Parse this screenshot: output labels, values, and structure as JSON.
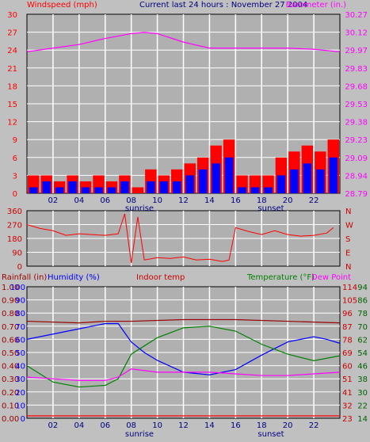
{
  "header": {
    "title": "Current last 24 hours : November 27 2004",
    "wind_label": "Windspeed (mph)",
    "baro_label": "Barometer (in.)"
  },
  "colors": {
    "background": "#c0c0c0",
    "plot_bg": "#b0b0b0",
    "grid": "#ffffff",
    "red": "#ff0000",
    "blue": "#0000ff",
    "magenta": "#ff00ff",
    "darkred": "#990000",
    "green": "#008000",
    "navy": "#000080",
    "darkgreen": "#006400"
  },
  "x_ticks": [
    "02",
    "04",
    "06",
    "08",
    "10",
    "12",
    "14",
    "16",
    "18",
    "20",
    "22"
  ],
  "sunrise_label": "sunrise",
  "sunset_label": "sunset",
  "panel3": {
    "rain_label": "Rainfall (in)",
    "humidity_label": "Humidity (%)",
    "indoor_label": "Indoor temp",
    "temp_label": "Temperature (°F)",
    "dew_label": "Dew Point"
  },
  "chart_data": [
    {
      "type": "bar",
      "title": "Windspeed (mph) / Barometer (in.)",
      "x_range_hours": [
        0,
        24
      ],
      "y_left_ticks": [
        "0",
        "3",
        "6",
        "9",
        "12",
        "15",
        "18",
        "21",
        "24",
        "27",
        "30"
      ],
      "y_left_range": [
        0,
        30
      ],
      "y_right_ticks": [
        "28.79",
        "28.94",
        "29.09",
        "29.23",
        "29.38",
        "29.53",
        "29.68",
        "29.83",
        "29.97",
        "30.12",
        "30.27"
      ],
      "y_right_range": [
        28.79,
        30.27
      ],
      "series": [
        {
          "name": "Windspeed (mph)",
          "type": "bar",
          "hours": [
            0,
            1,
            2,
            3,
            4,
            5,
            6,
            7,
            8,
            9,
            10,
            11,
            12,
            13,
            14,
            15,
            16,
            17,
            18,
            19,
            20,
            21,
            22,
            23
          ],
          "gust_values": [
            3,
            3,
            2,
            3,
            2,
            3,
            2,
            3,
            1,
            4,
            3,
            4,
            5,
            6,
            8,
            9,
            3,
            3,
            3,
            6,
            7,
            8,
            7,
            9
          ],
          "avg_values": [
            1,
            2,
            1,
            2,
            1,
            1,
            1,
            2,
            0,
            2,
            2,
            2,
            3,
            4,
            5,
            6,
            1,
            1,
            1,
            3,
            4,
            5,
            4,
            6
          ]
        },
        {
          "name": "Barometer (in.)",
          "type": "line",
          "hours": [
            0,
            2,
            4,
            6,
            8,
            9,
            10,
            12,
            14,
            16,
            18,
            20,
            22,
            24
          ],
          "values": [
            29.96,
            29.99,
            30.02,
            30.07,
            30.11,
            30.12,
            30.11,
            30.04,
            29.99,
            29.99,
            29.99,
            29.99,
            29.98,
            29.96
          ]
        }
      ]
    },
    {
      "type": "line",
      "title": "Wind direction",
      "y_left_ticks": [
        "0",
        "90",
        "180",
        "270",
        "360"
      ],
      "y_left_range": [
        0,
        360
      ],
      "y_right_ticks": [
        "N",
        "E",
        "S",
        "W",
        "N"
      ],
      "series": [
        {
          "name": "Wind direction",
          "hours": [
            0,
            1,
            2,
            3,
            4,
            5,
            6,
            7,
            7.5,
            8,
            8.5,
            9,
            10,
            11,
            12,
            13,
            14,
            15,
            15.5,
            16,
            17,
            18,
            19,
            20,
            21,
            22,
            23,
            23.5
          ],
          "values": [
            270,
            245,
            230,
            200,
            210,
            205,
            200,
            210,
            340,
            20,
            320,
            40,
            55,
            50,
            60,
            40,
            45,
            30,
            40,
            250,
            225,
            205,
            230,
            205,
            195,
            200,
            215,
            250
          ]
        }
      ]
    },
    {
      "type": "line",
      "title": "Rainfall / Humidity / Indoor temp / Temperature / Dew Point",
      "y_rain_ticks": [
        "0.00",
        "0.10",
        "0.20",
        "0.30",
        "0.40",
        "0.50",
        "0.60",
        "0.70",
        "0.80",
        "0.90",
        "1.00"
      ],
      "y_humidity_ticks": [
        "0",
        "10",
        "20",
        "30",
        "40",
        "50",
        "60",
        "70",
        "80",
        "90",
        "100"
      ],
      "y_temp_ticks": [
        "14",
        "22",
        "30",
        "38",
        "46",
        "54",
        "62",
        "70",
        "78",
        "86",
        "94"
      ],
      "y_dew_ticks": [
        "23",
        "32",
        "41",
        "51",
        "60",
        "69",
        "78",
        "87",
        "96",
        "105",
        "114"
      ],
      "series": [
        {
          "name": "Humidity (%)",
          "hours": [
            0,
            2,
            4,
            6,
            7,
            8,
            9,
            10,
            12,
            14,
            16,
            18,
            20,
            22,
            23,
            24
          ],
          "values": [
            60,
            64,
            68,
            72,
            72,
            58,
            50,
            44,
            35,
            33,
            37,
            48,
            58,
            62,
            60,
            57
          ]
        },
        {
          "name": "Indoor temp",
          "hours": [
            0,
            4,
            6,
            8,
            12,
            16,
            20,
            24
          ],
          "values": [
            73,
            72,
            73,
            73,
            74,
            74,
            73,
            72
          ]
        },
        {
          "name": "Temperature (°F)",
          "hours": [
            0,
            2,
            4,
            6,
            7,
            8,
            10,
            12,
            14,
            16,
            18,
            20,
            22,
            24
          ],
          "values": [
            46,
            36,
            33,
            34,
            38,
            53,
            63,
            69,
            70,
            67,
            59,
            53,
            49,
            52
          ]
        },
        {
          "name": "Dew Point",
          "hours": [
            0,
            2,
            4,
            6,
            7,
            8,
            10,
            12,
            14,
            16,
            18,
            20,
            22,
            24
          ],
          "values": [
            39,
            38,
            37,
            37,
            39,
            44,
            42,
            42,
            42,
            41,
            40,
            40,
            41,
            42
          ]
        },
        {
          "name": "Rainfall (in)",
          "hours": [
            0,
            24
          ],
          "values": [
            0,
            0
          ]
        }
      ]
    }
  ]
}
